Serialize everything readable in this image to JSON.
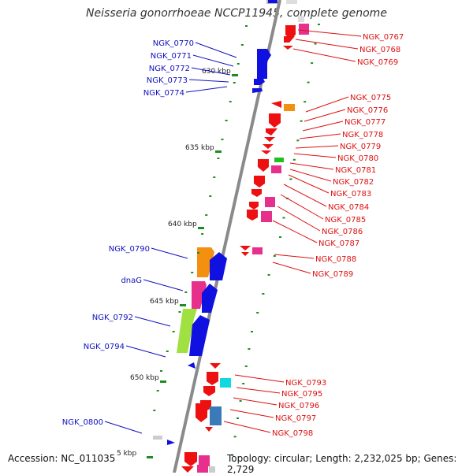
{
  "title": "Neisseria gonorrhoeae NCCP11945, complete genome",
  "accession": "Accession: NC_011035",
  "topology": "Topology: circular; Length: 2,232,025 bp; Genes: 2,729",
  "colors": {
    "forward_label": "#1010c0",
    "reverse_label": "#dd1010",
    "forward_gene": "#0a10e0",
    "reverse_gene": "#ee1010",
    "backbone": "#888888",
    "tick": "#1e8c1e"
  },
  "scale_ticks": [
    {
      "label": "630 kbp"
    },
    {
      "label": "635 kbp"
    },
    {
      "label": "640 kbp"
    },
    {
      "label": "645 kbp"
    },
    {
      "label": "650 kbp"
    },
    {
      "label": "5 kbp"
    }
  ],
  "forward_labels": [
    "NGK_0770",
    "NGK_0771",
    "NGK_0772",
    "NGK_0773",
    "NGK_0774",
    "NGK_0790",
    "dnaG",
    "NGK_0792",
    "NGK_0794",
    "NGK_0800"
  ],
  "reverse_labels": [
    "NGK_0767",
    "NGK_0768",
    "NGK_0769",
    "NGK_0775",
    "NGK_0776",
    "NGK_0777",
    "NGK_0778",
    "NGK_0779",
    "NGK_0780",
    "NGK_0781",
    "NGK_0782",
    "NGK_0783",
    "NGK_0784",
    "NGK_0785",
    "NGK_0786",
    "NGK_0787",
    "NGK_0788",
    "NGK_0789",
    "NGK_0793",
    "NGK_0795",
    "NGK_0796",
    "NGK_0797",
    "NGK_0798"
  ]
}
